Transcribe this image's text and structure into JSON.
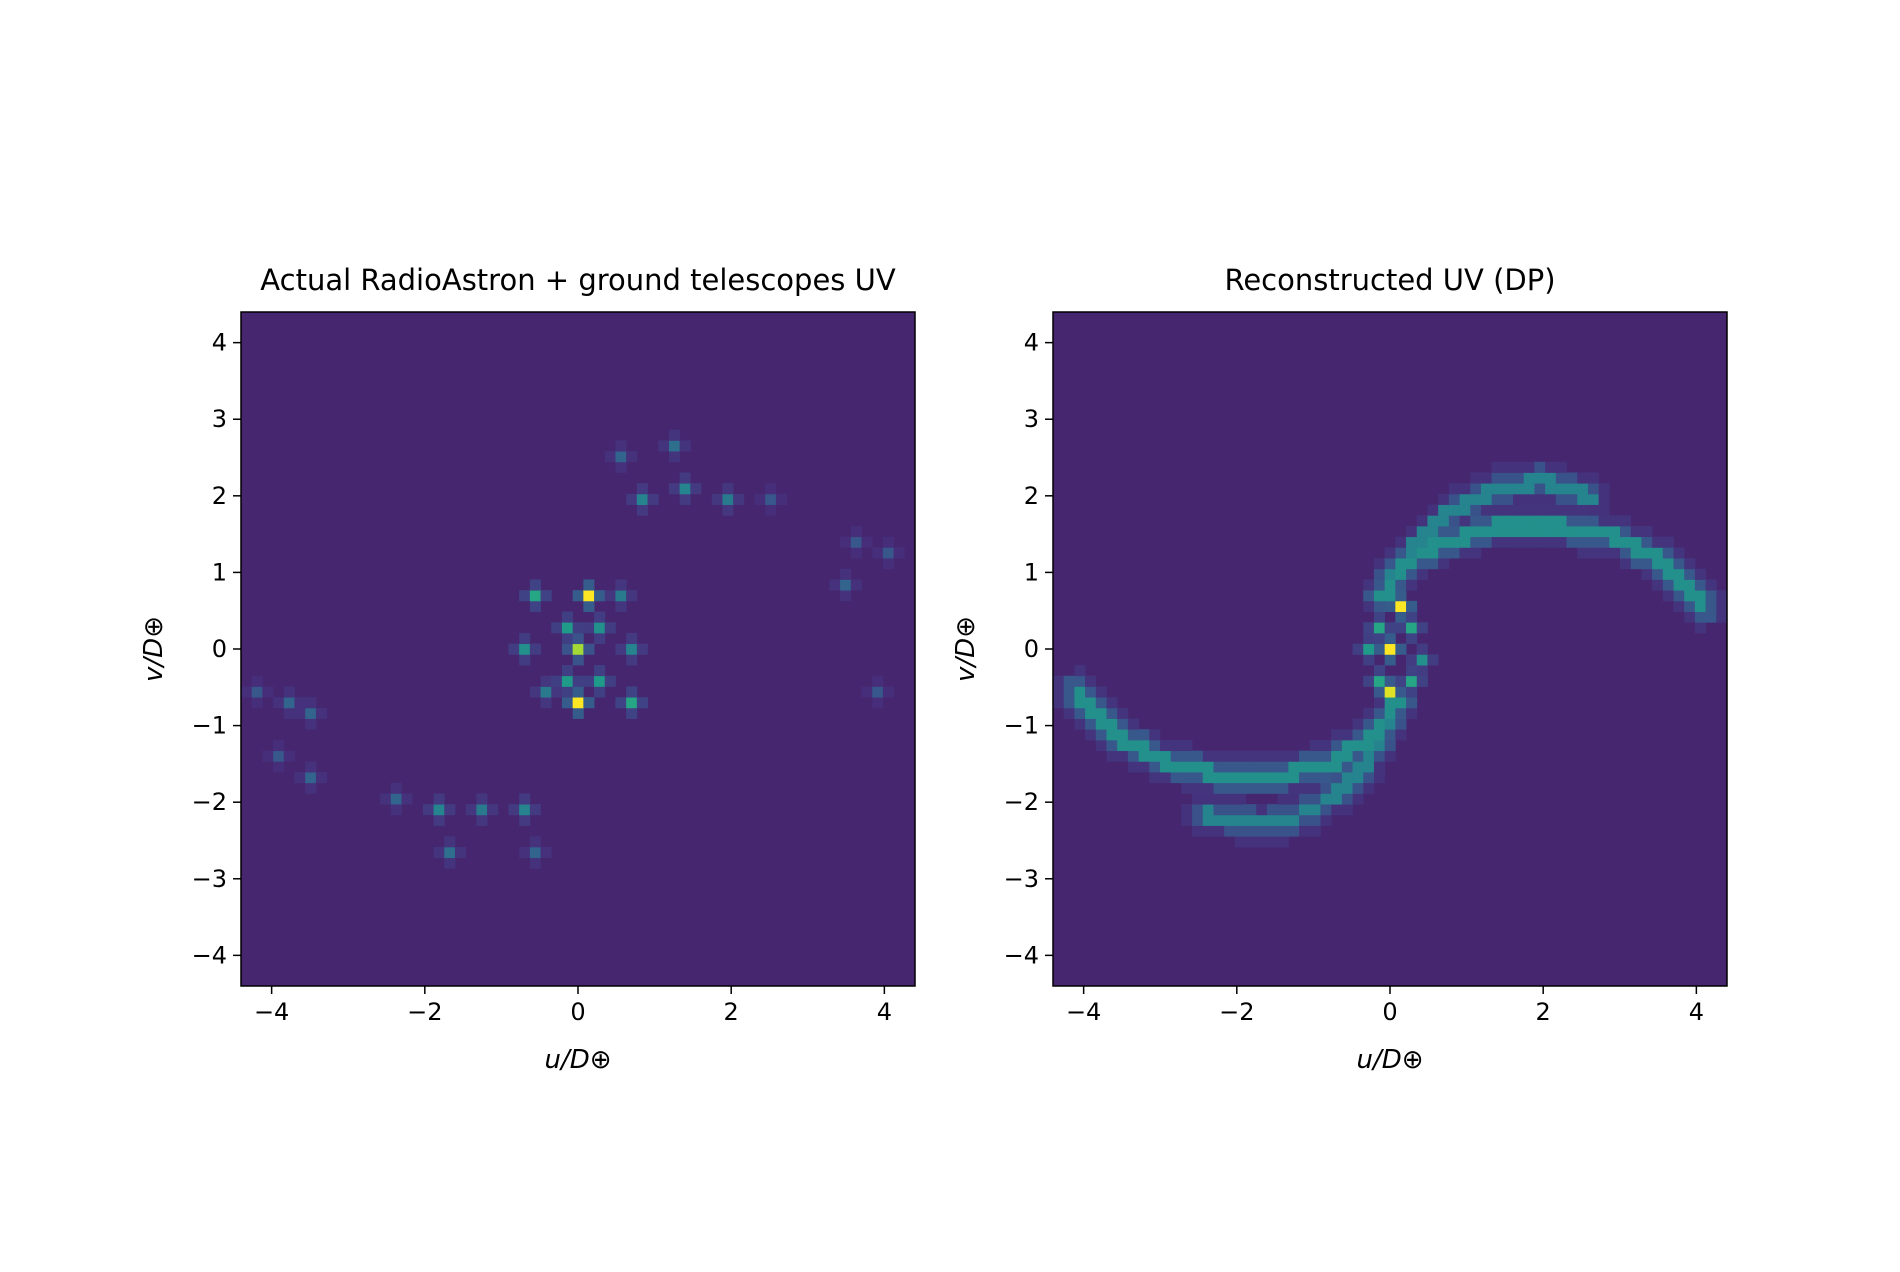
{
  "chart_data": [
    {
      "type": "heatmap",
      "title": "Actual RadioAstron + ground telescopes UV",
      "xlabel": "u/D⊕",
      "ylabel": "v/D⊕",
      "xlim": [
        -4.4,
        4.4
      ],
      "ylim": [
        -4.4,
        4.4
      ],
      "xticks": [
        -4,
        -2,
        0,
        2,
        4
      ],
      "yticks": [
        -4,
        -3,
        -2,
        -1,
        0,
        1,
        2,
        3,
        4
      ],
      "xtick_labels": [
        "−4",
        "−2",
        "0",
        "2",
        "4"
      ],
      "ytick_labels": [
        "−4",
        "−3",
        "−2",
        "−1",
        "0",
        "1",
        "2",
        "3",
        "4"
      ],
      "grid": false,
      "colormap": "viridis",
      "background_color": "#46266f",
      "bins": 63,
      "bright_points": [
        {
          "u": 0.2,
          "v": 0.65,
          "value": 1.0
        },
        {
          "u": 0.05,
          "v": -0.05,
          "value": 0.85
        },
        {
          "u": -0.05,
          "v": -0.75,
          "value": 1.0
        },
        {
          "u": -0.1,
          "v": 0.3,
          "value": 0.5
        },
        {
          "u": 0.25,
          "v": 0.3,
          "value": 0.45
        },
        {
          "u": -0.2,
          "v": -0.4,
          "value": 0.5
        },
        {
          "u": 0.25,
          "v": -0.45,
          "value": 0.5
        },
        {
          "u": -0.55,
          "v": 0.7,
          "value": 0.55
        },
        {
          "u": 0.75,
          "v": -0.75,
          "value": 0.55
        },
        {
          "u": -0.7,
          "v": -0.05,
          "value": 0.45
        },
        {
          "u": 0.75,
          "v": 0.0,
          "value": 0.4
        },
        {
          "u": 0.5,
          "v": 0.65,
          "value": 0.35
        },
        {
          "u": -0.45,
          "v": -0.55,
          "value": 0.35
        },
        {
          "u": -1.85,
          "v": -2.05,
          "value": 0.4
        },
        {
          "u": -1.3,
          "v": -2.15,
          "value": 0.35
        },
        {
          "u": -0.7,
          "v": -2.15,
          "value": 0.4
        },
        {
          "u": 0.85,
          "v": 2.0,
          "value": 0.4
        },
        {
          "u": 1.45,
          "v": 2.05,
          "value": 0.4
        },
        {
          "u": 2.0,
          "v": 1.95,
          "value": 0.35
        },
        {
          "u": -1.7,
          "v": -2.65,
          "value": 0.3
        },
        {
          "u": 1.3,
          "v": 2.6,
          "value": 0.3
        },
        {
          "u": -3.8,
          "v": -0.65,
          "value": 0.25
        },
        {
          "u": -3.45,
          "v": -0.9,
          "value": 0.25
        },
        {
          "u": -4.15,
          "v": -0.5,
          "value": 0.2
        },
        {
          "u": -3.5,
          "v": -1.65,
          "value": 0.25
        },
        {
          "u": -2.4,
          "v": -2.0,
          "value": 0.25
        },
        {
          "u": -3.95,
          "v": -1.4,
          "value": 0.2
        },
        {
          "u": 3.85,
          "v": -0.5,
          "value": 0.2
        },
        {
          "u": 3.55,
          "v": 0.8,
          "value": 0.25
        },
        {
          "u": 3.6,
          "v": 1.4,
          "value": 0.2
        },
        {
          "u": 4.1,
          "v": 1.3,
          "value": 0.2
        },
        {
          "u": 2.55,
          "v": 2.0,
          "value": 0.2
        },
        {
          "u": 0.6,
          "v": 2.55,
          "value": 0.25
        },
        {
          "u": -0.55,
          "v": -2.7,
          "value": 0.25
        }
      ]
    },
    {
      "type": "heatmap",
      "title": "Reconstructed UV (DP)",
      "xlabel": "u/D⊕",
      "ylabel": "v/D⊕",
      "xlim": [
        -4.4,
        4.4
      ],
      "ylim": [
        -4.4,
        4.4
      ],
      "xticks": [
        -4,
        -2,
        0,
        2,
        4
      ],
      "yticks": [
        -4,
        -3,
        -2,
        -1,
        0,
        1,
        2,
        3,
        4
      ],
      "xtick_labels": [
        "−4",
        "−2",
        "0",
        "2",
        "4"
      ],
      "ytick_labels": [
        "−4",
        "−3",
        "−2",
        "−1",
        "0",
        "1",
        "2",
        "3",
        "4"
      ],
      "grid": false,
      "colormap": "viridis",
      "background_color": "#46266f",
      "bins": 63,
      "bright_points": [
        {
          "u": 0.1,
          "v": 0.5,
          "value": 1.0
        },
        {
          "u": 0.05,
          "v": -0.05,
          "value": 1.0
        },
        {
          "u": 0.05,
          "v": -0.6,
          "value": 0.95
        },
        {
          "u": -0.15,
          "v": 0.3,
          "value": 0.55
        },
        {
          "u": 0.3,
          "v": 0.3,
          "value": 0.55
        },
        {
          "u": -0.2,
          "v": -0.35,
          "value": 0.55
        },
        {
          "u": 0.25,
          "v": -0.35,
          "value": 0.55
        },
        {
          "u": -0.25,
          "v": 0.0,
          "value": 0.5
        },
        {
          "u": 0.35,
          "v": -0.1,
          "value": 0.45
        }
      ],
      "arcs": [
        {
          "description": "outer arc lower-left",
          "points_uv": [
            [
              -4.1,
              -0.55
            ],
            [
              -3.6,
              -1.1
            ],
            [
              -3.0,
              -1.45
            ],
            [
              -2.2,
              -1.65
            ],
            [
              -1.4,
              -1.65
            ],
            [
              -0.7,
              -1.45
            ],
            [
              -0.2,
              -1.1
            ],
            [
              0.1,
              -0.7
            ]
          ],
          "value": 0.45
        },
        {
          "description": "inner arc lower-left",
          "points_uv": [
            [
              -2.4,
              -2.15
            ],
            [
              -1.6,
              -2.3
            ],
            [
              -1.0,
              -2.1
            ],
            [
              -0.5,
              -1.7
            ],
            [
              -0.2,
              -1.3
            ],
            [
              0.0,
              -0.9
            ]
          ],
          "value": 0.4
        },
        {
          "description": "outer arc upper-right",
          "points_uv": [
            [
              4.1,
              0.55
            ],
            [
              3.6,
              1.1
            ],
            [
              3.0,
              1.45
            ],
            [
              2.2,
              1.6
            ],
            [
              1.4,
              1.6
            ],
            [
              0.7,
              1.4
            ],
            [
              0.2,
              1.1
            ],
            [
              -0.1,
              0.7
            ]
          ],
          "value": 0.45
        },
        {
          "description": "inner arc upper-right",
          "points_uv": [
            [
              2.6,
              2.0
            ],
            [
              2.0,
              2.2
            ],
            [
              1.4,
              2.1
            ],
            [
              0.8,
              1.8
            ],
            [
              0.3,
              1.3
            ],
            [
              0.0,
              0.9
            ]
          ],
          "value": 0.4
        }
      ]
    }
  ]
}
